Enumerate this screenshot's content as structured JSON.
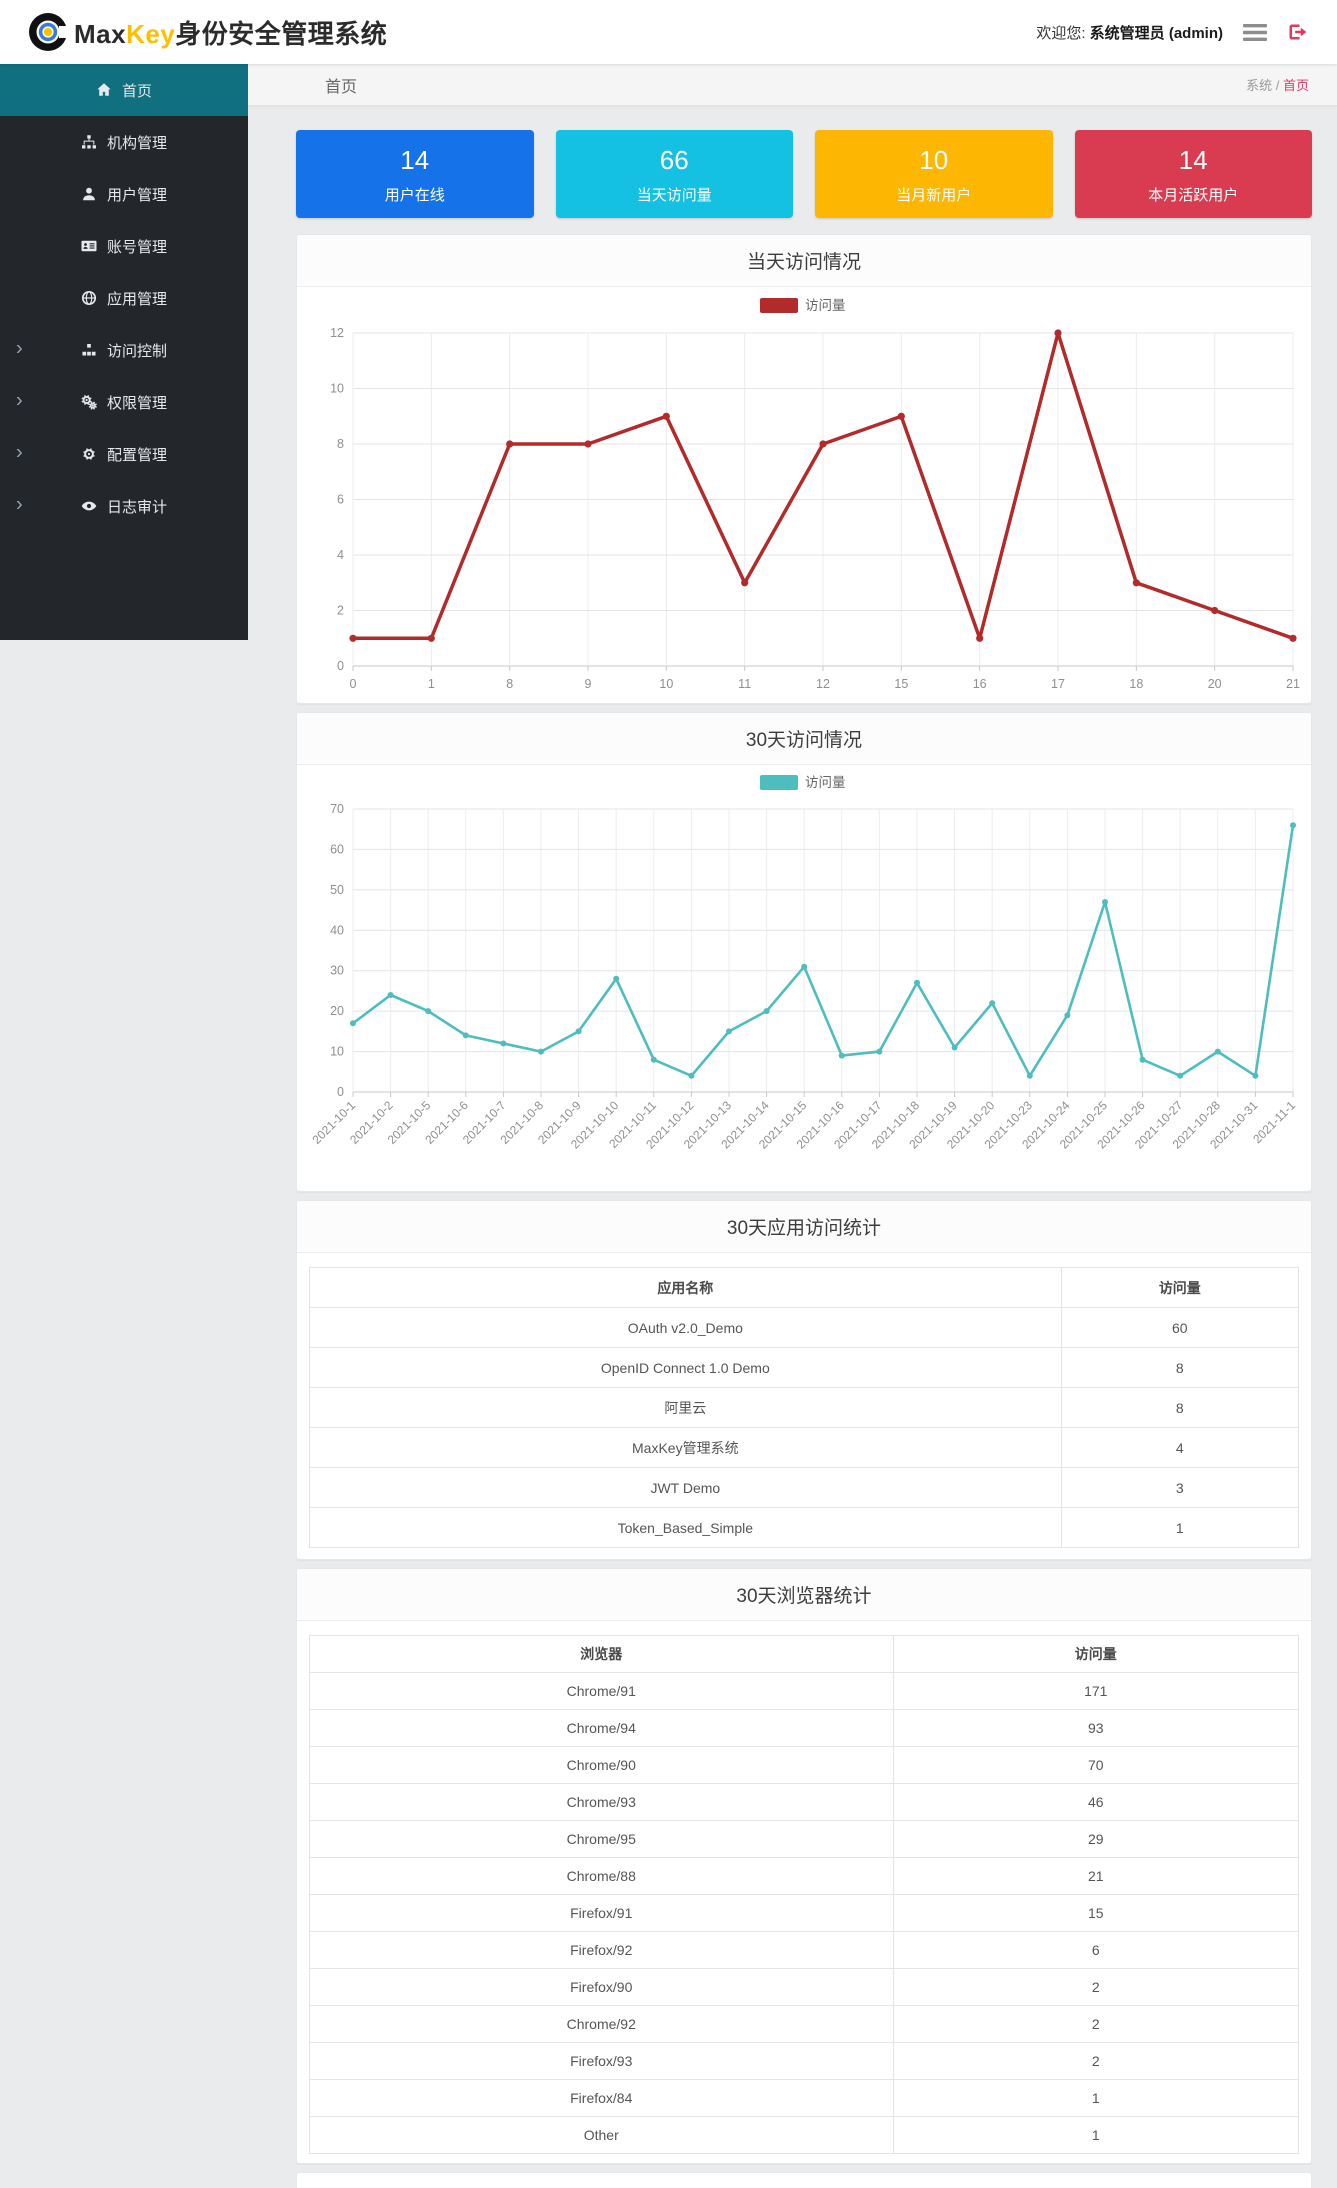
{
  "header": {
    "brand_max": "Max",
    "brand_key": "Key",
    "brand_suffix": "身份安全管理系统",
    "welcome_label": "欢迎您:",
    "username": "系统管理员 (admin)"
  },
  "sidebar": {
    "items": [
      {
        "label": "首页",
        "icon": "home-icon",
        "active": true,
        "expandable": false
      },
      {
        "label": "机构管理",
        "icon": "sitemap-icon",
        "active": false,
        "expandable": false
      },
      {
        "label": "用户管理",
        "icon": "user-icon",
        "active": false,
        "expandable": false
      },
      {
        "label": "账号管理",
        "icon": "id-card-icon",
        "active": false,
        "expandable": false
      },
      {
        "label": "应用管理",
        "icon": "globe-icon",
        "active": false,
        "expandable": false
      },
      {
        "label": "访问控制",
        "icon": "cubes-icon",
        "active": false,
        "expandable": true
      },
      {
        "label": "权限管理",
        "icon": "cogs-icon",
        "active": false,
        "expandable": true
      },
      {
        "label": "配置管理",
        "icon": "gear-icon",
        "active": false,
        "expandable": true
      },
      {
        "label": "日志审计",
        "icon": "eye-icon",
        "active": false,
        "expandable": true
      }
    ]
  },
  "breadcrumb": {
    "page_title": "首页",
    "root": "系统",
    "separator": " / ",
    "current": "首页"
  },
  "cards": [
    {
      "value": "14",
      "label": "用户在线",
      "color": "#1572e8"
    },
    {
      "value": "66",
      "label": "当天访问量",
      "color": "#14c1e2"
    },
    {
      "value": "10",
      "label": "当月新用户",
      "color": "#fdb601"
    },
    {
      "value": "14",
      "label": "本月活跃用户",
      "color": "#d93b50"
    }
  ],
  "chart_data": [
    {
      "type": "line",
      "title": "当天访问情况",
      "legend": [
        "访问量"
      ],
      "color": "#b22a2a",
      "categories": [
        "0",
        "1",
        "8",
        "9",
        "10",
        "11",
        "12",
        "15",
        "16",
        "17",
        "18",
        "20",
        "21"
      ],
      "values": [
        1,
        1,
        8,
        8,
        9,
        3,
        8,
        9,
        1,
        12,
        3,
        2,
        1
      ],
      "ylim": [
        0,
        12
      ],
      "yticks": [
        0,
        2,
        4,
        6,
        8,
        10,
        12
      ],
      "xlabel": "",
      "ylabel": "",
      "grid": true,
      "legend_position": "top-center",
      "xlabel_rotate": 0
    },
    {
      "type": "line",
      "title": "30天访问情况",
      "legend": [
        "访问量"
      ],
      "color": "#4dbdbd",
      "categories": [
        "2021-10-1",
        "2021-10-2",
        "2021-10-5",
        "2021-10-6",
        "2021-10-7",
        "2021-10-8",
        "2021-10-9",
        "2021-10-10",
        "2021-10-11",
        "2021-10-12",
        "2021-10-13",
        "2021-10-14",
        "2021-10-15",
        "2021-10-16",
        "2021-10-17",
        "2021-10-18",
        "2021-10-19",
        "2021-10-20",
        "2021-10-23",
        "2021-10-24",
        "2021-10-25",
        "2021-10-26",
        "2021-10-27",
        "2021-10-28",
        "2021-10-31",
        "2021-11-1"
      ],
      "values": [
        17,
        24,
        20,
        14,
        12,
        10,
        15,
        28,
        8,
        4,
        15,
        20,
        31,
        9,
        10,
        27,
        11,
        22,
        4,
        19,
        47,
        8,
        4,
        10,
        4,
        66
      ],
      "ylim": [
        0,
        70
      ],
      "yticks": [
        0,
        10,
        20,
        30,
        40,
        50,
        60,
        70
      ],
      "xlabel": "",
      "ylabel": "",
      "grid": true,
      "legend_position": "top-center",
      "xlabel_rotate": 45
    }
  ],
  "tables": [
    {
      "title": "30天应用访问统计",
      "headers": [
        "应用名称",
        "访问量"
      ],
      "rows": [
        [
          "OAuth v2.0_Demo",
          "60"
        ],
        [
          "OpenID Connect 1.0 Demo",
          "8"
        ],
        [
          "阿里云",
          "8"
        ],
        [
          "MaxKey管理系统",
          "4"
        ],
        [
          "JWT Demo",
          "3"
        ],
        [
          "Token_Based_Simple",
          "1"
        ]
      ]
    },
    {
      "title": "30天浏览器统计",
      "headers": [
        "浏览器",
        "访问量"
      ],
      "rows": [
        [
          "Chrome/91",
          "171"
        ],
        [
          "Chrome/94",
          "93"
        ],
        [
          "Chrome/90",
          "70"
        ],
        [
          "Chrome/93",
          "46"
        ],
        [
          "Chrome/95",
          "29"
        ],
        [
          "Chrome/88",
          "21"
        ],
        [
          "Firefox/91",
          "15"
        ],
        [
          "Firefox/92",
          "6"
        ],
        [
          "Firefox/90",
          "2"
        ],
        [
          "Chrome/92",
          "2"
        ],
        [
          "Firefox/93",
          "2"
        ],
        [
          "Firefox/84",
          "1"
        ],
        [
          "Other",
          "1"
        ]
      ]
    }
  ]
}
